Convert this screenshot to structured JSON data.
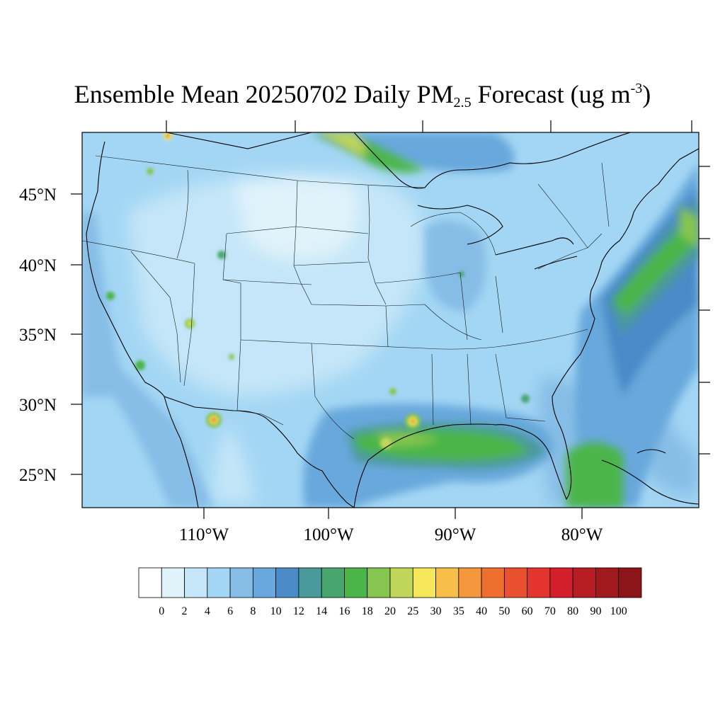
{
  "title": {
    "prefix": "Ensemble Mean 20250702 Daily PM",
    "subscript": "2.5",
    "middle": " Forecast (ug m",
    "superscript": "-3",
    "suffix": ")"
  },
  "map": {
    "type": "filled-contour-map",
    "region": "Contiguous United States",
    "variable": "PM2.5",
    "lat_range": [
      22.8,
      49.5
    ],
    "lon_range": [
      -119.7,
      -70.8
    ],
    "lat_ticks": [
      "45°N",
      "40°N",
      "35°N",
      "30°N",
      "25°N"
    ],
    "lon_ticks": [
      "110°W",
      "100°W",
      "90°W",
      "80°W"
    ]
  },
  "colorbar": {
    "labels": [
      "0",
      "2",
      "4",
      "6",
      "8",
      "10",
      "12",
      "14",
      "16",
      "18",
      "20",
      "25",
      "30",
      "35",
      "40",
      "50",
      "60",
      "70",
      "80",
      "90",
      "100"
    ],
    "colors": [
      "#ffffff",
      "#e0f3fb",
      "#c4e6f8",
      "#a3d6f4",
      "#86bde6",
      "#68a8dc",
      "#4a8bc8",
      "#4b9a9b",
      "#46a66e",
      "#4cb54a",
      "#86c54f",
      "#c0d65a",
      "#f6e65a",
      "#f7be4a",
      "#f4973d",
      "#ef6f2f",
      "#e9502d",
      "#e3352d",
      "#d31f2c",
      "#b71c25",
      "#a01a1d",
      "#8c1519"
    ]
  }
}
